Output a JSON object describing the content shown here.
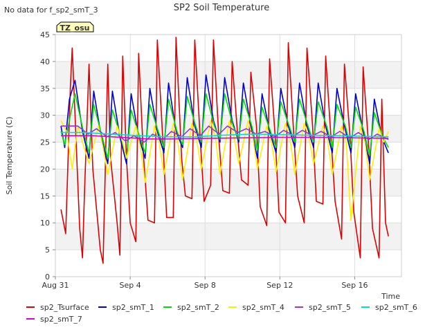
{
  "header": {
    "note": "No data for f_sp2_smT_3",
    "tag": "TZ_osu"
  },
  "chart_data": {
    "type": "line",
    "title": "SP2 Soil Temperature",
    "xlabel": "Time",
    "ylabel": "Soil Temperature (C)",
    "xlim": [
      0,
      18.5
    ],
    "ylim": [
      0,
      45
    ],
    "y_ticks": [
      0,
      5,
      10,
      15,
      20,
      25,
      30,
      35,
      40,
      45
    ],
    "x_ticks": [
      {
        "day": 0,
        "label": "Aug 31"
      },
      {
        "day": 4,
        "label": "Sep 4"
      },
      {
        "day": 8,
        "label": "Sep 8"
      },
      {
        "day": 12,
        "label": "Sep 12"
      },
      {
        "day": 16,
        "label": "Sep 16"
      }
    ],
    "grid": true,
    "shaded_bands": [
      [
        5,
        10
      ],
      [
        15,
        20
      ],
      [
        25,
        30
      ],
      [
        35,
        40
      ]
    ],
    "legend_position": "bottom",
    "series": [
      {
        "name": "sp2_Tsurface",
        "color": "#dd0000",
        "x": [
          0.3,
          0.55,
          0.8,
          0.9,
          1.05,
          1.3,
          1.45,
          1.55,
          1.8,
          2.0,
          2.4,
          2.55,
          2.8,
          2.95,
          3.3,
          3.45,
          3.6,
          3.8,
          4.0,
          4.3,
          4.45,
          4.7,
          4.95,
          5.3,
          5.45,
          5.75,
          5.95,
          6.3,
          6.45,
          6.75,
          6.95,
          7.3,
          7.45,
          7.75,
          7.95,
          8.3,
          8.45,
          8.75,
          8.95,
          9.3,
          9.45,
          9.75,
          9.95,
          10.3,
          10.45,
          10.75,
          10.95,
          11.3,
          11.45,
          11.75,
          11.95,
          12.3,
          12.45,
          12.75,
          12.95,
          13.3,
          13.45,
          13.75,
          13.95,
          14.3,
          14.45,
          14.75,
          14.95,
          15.3,
          15.45,
          15.75,
          15.95,
          16.3,
          16.45,
          16.75,
          16.95,
          17.3,
          17.45,
          17.65,
          17.8
        ],
        "y": [
          12.5,
          8,
          35,
          42.5,
          30,
          9,
          3.5,
          15,
          39.5,
          20,
          5,
          2.5,
          39.5,
          22,
          10,
          4,
          41,
          22,
          10,
          6.5,
          41.5,
          23,
          10.5,
          10,
          44,
          25,
          11,
          11,
          44.5,
          22,
          15,
          14.5,
          44,
          25,
          14,
          17,
          44,
          25,
          16,
          15.5,
          40,
          26,
          18,
          17,
          38,
          28,
          13,
          9.5,
          40.5,
          26,
          12,
          10,
          43.5,
          26,
          15,
          10,
          42.5,
          28,
          14,
          13.5,
          41,
          25,
          14,
          7,
          39.5,
          26,
          12,
          3.5,
          39,
          24,
          9,
          3.5,
          33,
          10,
          7.5
        ]
      },
      {
        "name": "sp2_smT_1",
        "color": "#0000cc",
        "x": [
          0.3,
          0.5,
          0.75,
          1.05,
          1.45,
          1.8,
          2.05,
          2.45,
          2.8,
          3.05,
          3.45,
          3.8,
          4.05,
          4.45,
          4.8,
          5.05,
          5.45,
          5.8,
          6.05,
          6.45,
          6.8,
          7.05,
          7.45,
          7.8,
          8.05,
          8.45,
          8.8,
          9.05,
          9.45,
          9.8,
          10.05,
          10.45,
          10.8,
          11.05,
          11.45,
          11.8,
          12.05,
          12.45,
          12.8,
          13.05,
          13.45,
          13.8,
          14.05,
          14.45,
          14.8,
          15.05,
          15.45,
          15.8,
          16.05,
          16.45,
          16.8,
          17.05,
          17.45,
          17.8
        ],
        "y": [
          28,
          24,
          33,
          36.5,
          27,
          22,
          34.5,
          26,
          21,
          34.5,
          26,
          21,
          34,
          26,
          22,
          35,
          27,
          23,
          36,
          27,
          24,
          37,
          28,
          24,
          37.5,
          29,
          25,
          37,
          29,
          25,
          36,
          28,
          22,
          34,
          27,
          23,
          35,
          28,
          24,
          36,
          28,
          24,
          36,
          28,
          23,
          35,
          28,
          23,
          34,
          27,
          21,
          33,
          26,
          23
        ]
      },
      {
        "name": "sp2_smT_2",
        "color": "#00dd00",
        "x": [
          0.3,
          0.5,
          0.8,
          1.05,
          1.5,
          1.8,
          2.05,
          2.5,
          2.8,
          3.05,
          3.5,
          3.8,
          4.05,
          4.5,
          4.8,
          5.05,
          5.5,
          5.8,
          6.05,
          6.5,
          6.8,
          7.05,
          7.5,
          7.8,
          8.05,
          8.5,
          8.8,
          9.05,
          9.5,
          9.8,
          10.05,
          10.5,
          10.8,
          11.05,
          11.5,
          11.8,
          12.05,
          12.5,
          12.8,
          13.05,
          13.5,
          13.8,
          14.05,
          14.5,
          14.8,
          15.05,
          15.5,
          15.8,
          16.05,
          16.5,
          16.8,
          17.05,
          17.5,
          17.8
        ],
        "y": [
          27,
          24.5,
          30,
          34,
          27,
          23,
          32,
          26,
          22,
          31,
          26,
          22,
          31,
          26,
          23,
          32,
          27,
          24,
          33,
          27,
          24.5,
          33.5,
          28,
          25,
          34,
          28,
          25.5,
          34,
          28,
          25.5,
          33,
          28,
          23.5,
          31.5,
          27,
          24,
          32.5,
          28,
          25,
          33,
          28,
          25,
          32.5,
          28,
          24,
          32,
          28,
          24,
          31.5,
          27,
          22.5,
          30.5,
          26,
          24
        ]
      },
      {
        "name": "sp2_smT_4",
        "color": "#ffee00",
        "x": [
          0.3,
          0.6,
          0.9,
          1.2,
          1.45,
          1.8,
          2.3,
          2.55,
          2.8,
          3.3,
          3.6,
          3.8,
          4.3,
          4.55,
          4.8,
          5.3,
          5.55,
          5.8,
          6.3,
          6.55,
          6.8,
          7.3,
          7.55,
          7.8,
          8.3,
          8.55,
          8.8,
          9.3,
          9.55,
          9.8,
          10.3,
          10.55,
          10.8,
          11.3,
          11.55,
          11.8,
          12.3,
          12.55,
          12.8,
          13.3,
          13.55,
          13.8,
          14.3,
          14.55,
          14.8,
          15.3,
          15.55,
          15.8,
          16.3,
          16.55,
          16.8,
          17.3,
          17.55,
          17.8
        ],
        "y": [
          29,
          27,
          20,
          28,
          25,
          21,
          28,
          24,
          19,
          28,
          25,
          22,
          28,
          24,
          17.5,
          28,
          25,
          19,
          28.5,
          25,
          18,
          28.5,
          25.5,
          20,
          29,
          26,
          19,
          29,
          26,
          21,
          29,
          26,
          20,
          28,
          25,
          19.5,
          28.5,
          25.5,
          19,
          28.5,
          26,
          21,
          28,
          25.5,
          19,
          28,
          25,
          10.5,
          28,
          25,
          18,
          27.5,
          25,
          27
        ]
      },
      {
        "name": "sp2_smT_5",
        "color": "#9933dd",
        "x": [
          0.3,
          1.2,
          1.75,
          2.2,
          2.75,
          3.2,
          3.75,
          4.2,
          4.75,
          5.2,
          5.75,
          6.2,
          6.75,
          7.2,
          7.75,
          8.2,
          8.75,
          9.2,
          9.75,
          10.2,
          10.75,
          11.2,
          11.75,
          12.2,
          12.75,
          13.2,
          13.75,
          14.2,
          14.75,
          15.2,
          15.75,
          16.2,
          16.75,
          17.2,
          17.8
        ],
        "y": [
          28,
          28,
          26.5,
          27.5,
          26,
          26.8,
          25.2,
          26.2,
          25,
          26.5,
          25.5,
          27,
          26,
          27.5,
          26.2,
          28,
          26.5,
          28,
          26.8,
          27.5,
          26.5,
          27,
          26,
          27.2,
          26.2,
          27.2,
          26.2,
          27,
          26,
          27,
          25.8,
          26.8,
          25.5,
          26.5,
          25.5
        ]
      },
      {
        "name": "sp2_smT_6",
        "color": "#00dddd",
        "x": [
          0.3,
          1.5,
          3.0,
          4.5,
          6.0,
          7.5,
          9.0,
          10.5,
          12.0,
          13.5,
          15.0,
          16.5,
          17.8
        ],
        "y": [
          26.8,
          26.8,
          26.5,
          26.2,
          26.0,
          26.0,
          26.3,
          26.5,
          26.4,
          26.3,
          26.2,
          26.1,
          26.0
        ]
      },
      {
        "name": "sp2_smT_7",
        "color": "#dd00dd",
        "x": [
          0.3,
          2.0,
          4.0,
          5.0,
          6.0,
          8.0,
          10.0,
          12.0,
          14.0,
          16.0,
          17.8
        ],
        "y": [
          26.2,
          26.2,
          25.8,
          25.6,
          25.6,
          25.7,
          25.8,
          25.9,
          25.9,
          25.8,
          25.7
        ]
      }
    ]
  }
}
